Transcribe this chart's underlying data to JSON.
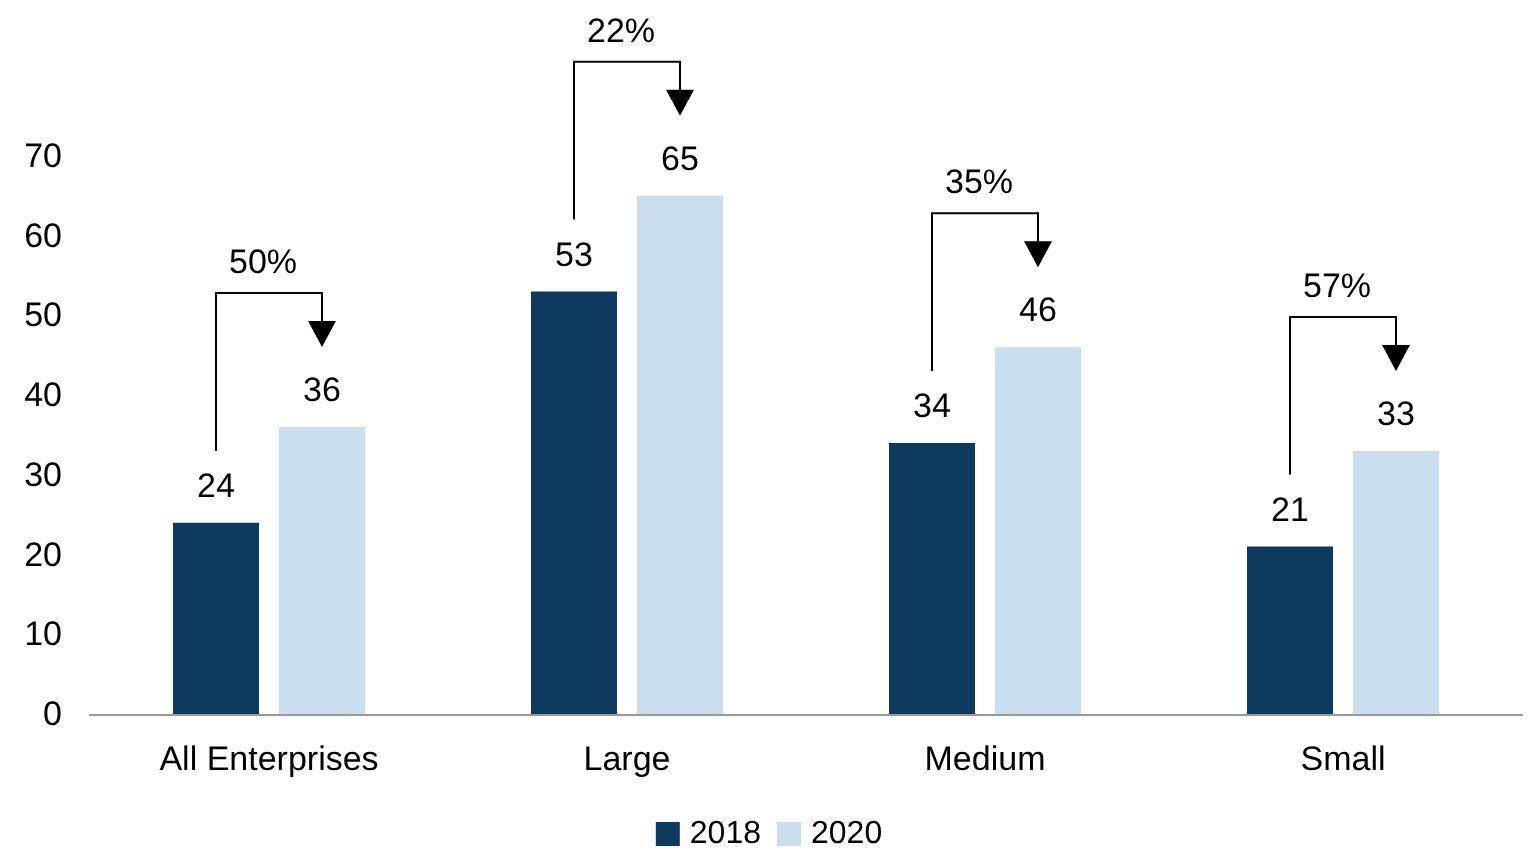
{
  "chart_data": {
    "type": "bar",
    "categories": [
      "All Enterprises",
      "Large",
      "Medium",
      "Small"
    ],
    "series": [
      {
        "name": "2018",
        "color": "#0f3a5f",
        "values": [
          24,
          53,
          34,
          21
        ]
      },
      {
        "name": "2020",
        "color": "#c9dff0",
        "values": [
          36,
          65,
          46,
          33
        ]
      }
    ],
    "ylim": [
      0,
      70
    ],
    "yticks": [
      0,
      10,
      20,
      30,
      40,
      50,
      60,
      70
    ],
    "data_labels": true,
    "grid": false,
    "legend": "bottom",
    "annotations": [
      "50%",
      "22%",
      "35%",
      "57%"
    ]
  }
}
